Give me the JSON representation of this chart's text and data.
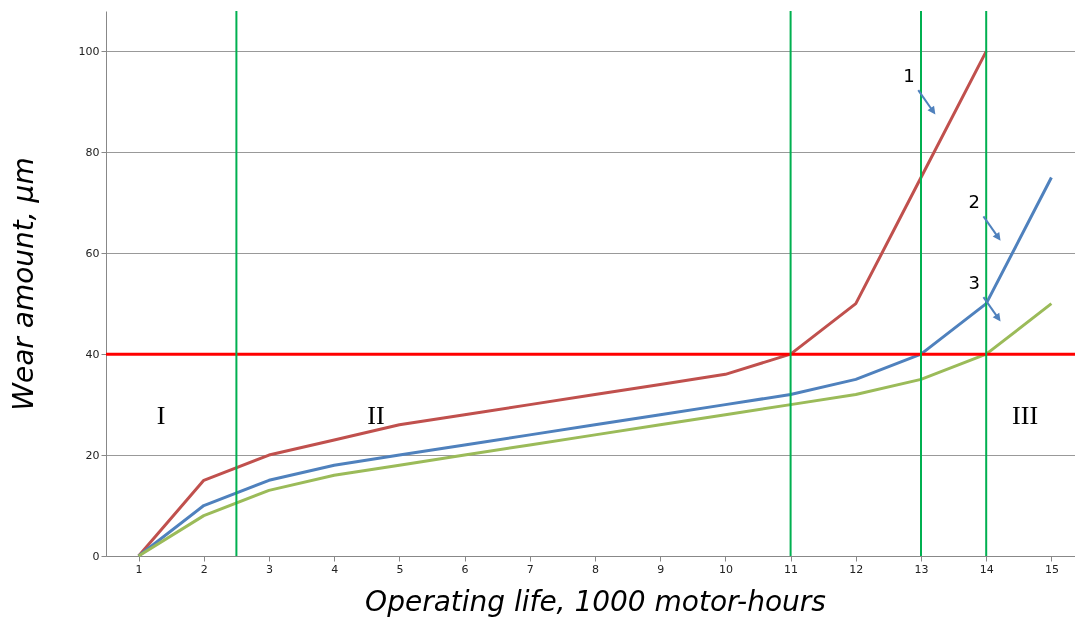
{
  "chart_data": {
    "type": "line",
    "xlabel": "Operating life, 1000 motor-hours",
    "ylabel": "Wear amount, µm",
    "x": [
      1,
      2,
      3,
      4,
      5,
      6,
      7,
      8,
      9,
      10,
      11,
      12,
      13,
      14,
      15
    ],
    "xlim": [
      0.5,
      15.5
    ],
    "xticks": [
      1,
      2,
      3,
      4,
      5,
      6,
      7,
      8,
      9,
      10,
      11,
      12,
      13,
      14,
      15
    ],
    "ylim": [
      0,
      108
    ],
    "yticks": [
      0,
      20,
      40,
      60,
      80,
      100
    ],
    "grid": "y",
    "legend": false,
    "marker": "none",
    "line_style": "solid",
    "series": [
      {
        "name": "1",
        "color": "#c0504d",
        "values": [
          0,
          15,
          20,
          23,
          26,
          28,
          30,
          32,
          34,
          36,
          40,
          50,
          75,
          100,
          null
        ]
      },
      {
        "name": "2",
        "color": "#4f81bd",
        "values": [
          0,
          10,
          15,
          18,
          20,
          22,
          24,
          26,
          28,
          30,
          32,
          35,
          40,
          50,
          75
        ]
      },
      {
        "name": "3",
        "color": "#9bbb59",
        "values": [
          0,
          8,
          13,
          16,
          18,
          20,
          22,
          24,
          26,
          28,
          30,
          32,
          35,
          40,
          50
        ]
      }
    ],
    "ref_lines": [
      {
        "axis": "y",
        "value": 40,
        "color": "#ff0000"
      },
      {
        "axis": "x",
        "value": 2.5,
        "color": "#00b050"
      },
      {
        "axis": "x",
        "value": 11,
        "color": "#00b050"
      },
      {
        "axis": "x",
        "value": 13,
        "color": "#00b050"
      },
      {
        "axis": "x",
        "value": 14,
        "color": "#00b050"
      }
    ],
    "annotations": [
      "I",
      "II",
      "III"
    ]
  }
}
